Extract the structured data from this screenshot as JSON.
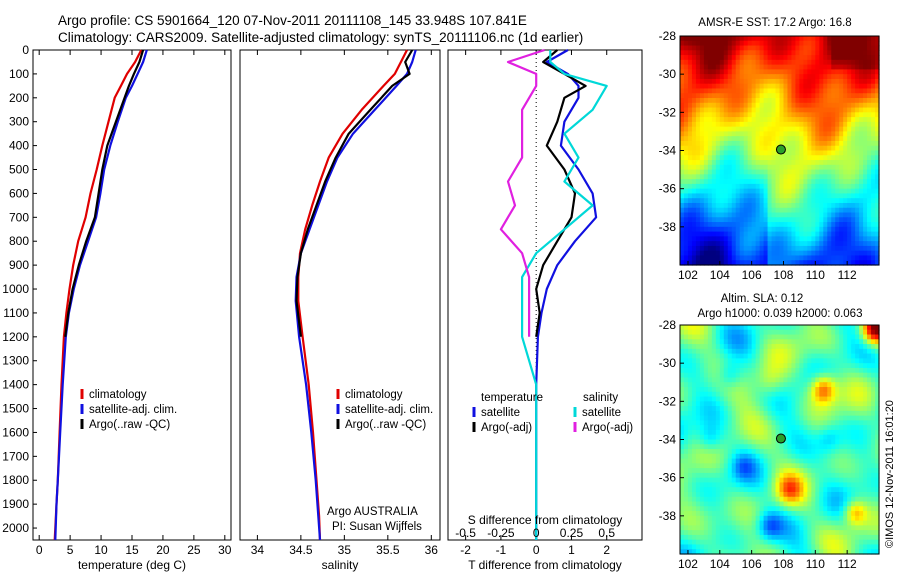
{
  "header": {
    "line1": "Argo profile: CS 5901664_120 07-Nov-2011 20111108_145 33.948S 107.841E",
    "line2": "Climatology: CARS2009. Satellite-adjusted climatology: synTS_20111106.nc (1d earlier)"
  },
  "colors": {
    "climatology": "#e00000",
    "satellite": "#1010e0",
    "argo": "#000000",
    "satellite_s": "#00d8d8",
    "argo_s": "#e020e0"
  },
  "chart_data": [
    {
      "type": "line",
      "id": "temperature",
      "xlabel": "temperature (deg C)",
      "ylabel": "",
      "xlim": [
        -1,
        31
      ],
      "ylim": [
        2050,
        0
      ],
      "xticks": [
        0,
        5,
        10,
        15,
        20,
        25,
        30
      ],
      "yticks": [
        0,
        100,
        200,
        300,
        400,
        500,
        600,
        700,
        800,
        900,
        1000,
        1100,
        1200,
        1300,
        1400,
        1500,
        1600,
        1700,
        1800,
        1900,
        2000
      ],
      "legend": [
        "climatology",
        "satellite-adj. clim.",
        "Argo(..raw -QC)"
      ],
      "legend_position": "lower-center",
      "series": [
        {
          "name": "climatology",
          "x": [
            16.5,
            15.5,
            14.2,
            13.2,
            12.2,
            11.2,
            10.2,
            9.3,
            8.3,
            7.5,
            6.3,
            5.5,
            4.9,
            4.4,
            4.0,
            3.6,
            3.3,
            3.0,
            2.8,
            2.5
          ],
          "y": [
            0,
            50,
            100,
            150,
            200,
            300,
            400,
            500,
            600,
            700,
            800,
            900,
            1000,
            1100,
            1200,
            1400,
            1600,
            1800,
            1900,
            2050
          ]
        },
        {
          "name": "satellite-adj. clim.",
          "x": [
            17.4,
            16.8,
            15.9,
            15.0,
            14.0,
            12.7,
            11.5,
            10.5,
            9.9,
            9.2,
            7.9,
            6.6,
            5.6,
            4.8,
            4.3,
            3.8,
            3.4,
            3.0,
            2.8,
            2.6
          ],
          "y": [
            0,
            50,
            100,
            150,
            200,
            300,
            400,
            500,
            600,
            700,
            800,
            900,
            1000,
            1100,
            1200,
            1400,
            1600,
            1800,
            1900,
            2050
          ]
        },
        {
          "name": "Argo(..raw -QC)",
          "x": [
            16.8,
            16.2,
            15.3,
            14.5,
            13.8,
            12.4,
            11.0,
            10.2,
            9.6,
            9.0,
            7.6,
            6.4,
            5.4,
            4.7,
            4.2
          ],
          "y": [
            0,
            50,
            100,
            150,
            200,
            300,
            400,
            500,
            600,
            700,
            800,
            900,
            1000,
            1100,
            1200
          ]
        }
      ]
    },
    {
      "type": "line",
      "id": "salinity",
      "xlabel": "salinity",
      "xlim": [
        33.8,
        36.1
      ],
      "ylim": [
        2050,
        0
      ],
      "xticks": [
        34,
        34.5,
        35,
        35.5,
        36
      ],
      "legend": [
        "climatology",
        "satellite-adj. clim.",
        "Argo(..raw -QC)"
      ],
      "legend_position": "lower-right",
      "annotations": [
        "Argo AUSTRALIA",
        "PI: Susan Wijffels"
      ],
      "series": [
        {
          "name": "climatology",
          "x": [
            35.72,
            35.65,
            35.58,
            35.45,
            35.2,
            34.98,
            34.82,
            34.72,
            34.63,
            34.55,
            34.49,
            34.47,
            34.47,
            34.52,
            34.59,
            34.64,
            34.68,
            34.71,
            34.72
          ],
          "y": [
            0,
            50,
            100,
            150,
            250,
            350,
            450,
            550,
            650,
            750,
            850,
            950,
            1050,
            1200,
            1400,
            1600,
            1800,
            1950,
            2050
          ]
        },
        {
          "name": "satellite-adj. clim.",
          "x": [
            35.82,
            35.78,
            35.72,
            35.6,
            35.35,
            35.1,
            34.92,
            34.8,
            34.7,
            34.6,
            34.5,
            34.45,
            34.44,
            34.48,
            34.56,
            34.62,
            34.67,
            34.7,
            34.72
          ],
          "y": [
            0,
            50,
            100,
            150,
            250,
            350,
            450,
            550,
            650,
            750,
            850,
            950,
            1050,
            1200,
            1400,
            1600,
            1800,
            1950,
            2050
          ]
        },
        {
          "name": "Argo(..raw -QC)",
          "x": [
            35.78,
            35.7,
            35.75,
            35.55,
            35.3,
            35.05,
            34.9,
            34.78,
            34.68,
            34.58,
            34.5,
            34.46,
            34.45,
            34.5
          ],
          "y": [
            0,
            50,
            100,
            150,
            250,
            350,
            450,
            550,
            650,
            750,
            850,
            950,
            1050,
            1200
          ]
        }
      ]
    },
    {
      "type": "line",
      "id": "difference",
      "xlabel": "T difference from climatology",
      "xlabel2": "S difference from climatology",
      "xlim": [
        -2.5,
        3
      ],
      "ylim": [
        2050,
        0
      ],
      "xticks": [
        -2,
        -1,
        0,
        1,
        2
      ],
      "xticks_s": [
        -0.5,
        -0.25,
        0,
        0.25,
        0.5
      ],
      "legend": [
        "temperature",
        "satellite",
        "Argo(-adj)",
        "salinity",
        "satellite",
        "Argo(-adj)"
      ],
      "legend_position": "lower-center",
      "series": [
        {
          "name": "satellite",
          "group": "temperature",
          "x": [
            0.9,
            0.3,
            0.9,
            1.2,
            1.2,
            0.8,
            0.7,
            1.2,
            1.6,
            1.7,
            1.1,
            0.6,
            0.3,
            0.15,
            0.05,
            0.0,
            0.0,
            0.0,
            0.0,
            0.0
          ],
          "y": [
            0,
            50,
            100,
            150,
            200,
            300,
            400,
            500,
            600,
            700,
            800,
            900,
            1000,
            1100,
            1200,
            1400,
            1600,
            1800,
            1900,
            2050
          ]
        },
        {
          "name": "Argo(-adj)",
          "group": "temperature",
          "x": [
            0.6,
            0.2,
            0.8,
            1.4,
            0.8,
            0.6,
            0.3,
            0.8,
            1.1,
            1.0,
            0.6,
            0.2,
            0.0,
            0.1,
            0.0
          ],
          "y": [
            0,
            50,
            100,
            150,
            200,
            300,
            400,
            500,
            600,
            700,
            800,
            900,
            1000,
            1100,
            1200
          ]
        },
        {
          "name": "satellite",
          "group": "salinity",
          "x": [
            0.1,
            0.1,
            0.2,
            0.5,
            0.4,
            0.2,
            0.3,
            0.2,
            0.4,
            0.2,
            0.0,
            -0.1,
            -0.1,
            -0.1,
            0.0,
            0.0,
            0.0,
            0.0,
            0.0
          ],
          "y": [
            0,
            50,
            100,
            150,
            250,
            350,
            450,
            550,
            650,
            750,
            850,
            950,
            1050,
            1200,
            1400,
            1600,
            1800,
            1950,
            2050
          ]
        },
        {
          "name": "Argo(-adj)",
          "group": "salinity",
          "x": [
            0.06,
            -0.2,
            0.0,
            0.0,
            -0.1,
            -0.1,
            -0.1,
            -0.2,
            -0.15,
            -0.25,
            -0.1,
            -0.05,
            -0.05,
            -0.05
          ],
          "y": [
            0,
            50,
            100,
            150,
            250,
            350,
            450,
            550,
            650,
            750,
            850,
            950,
            1050,
            1200
          ]
        }
      ]
    },
    {
      "type": "heatmap",
      "id": "sst_map",
      "title": "AMSR-E SST: 17.2 Argo: 16.8",
      "xlim": [
        101.5,
        114
      ],
      "ylim": [
        -40,
        -28
      ],
      "xticks": [
        102,
        104,
        106,
        108,
        110,
        112
      ],
      "yticks": [
        -28,
        -30,
        -32,
        -34,
        -36,
        -38
      ],
      "marker": {
        "lon": 107.84,
        "lat": -33.95
      }
    },
    {
      "type": "heatmap",
      "id": "sla_map",
      "title": "Altim. SLA: 0.12",
      "subtitle": "Argo h1000: 0.039 h2000: 0.063",
      "xlim": [
        101.5,
        114
      ],
      "ylim": [
        -40,
        -28
      ],
      "xticks": [
        102,
        104,
        106,
        108,
        110,
        112
      ],
      "yticks": [
        -28,
        -30,
        -32,
        -34,
        -36,
        -38
      ],
      "marker": {
        "lon": 107.84,
        "lat": -33.95
      }
    }
  ],
  "footer": {
    "credit": "©IMOS 12-Nov-2011 16:01:20"
  }
}
